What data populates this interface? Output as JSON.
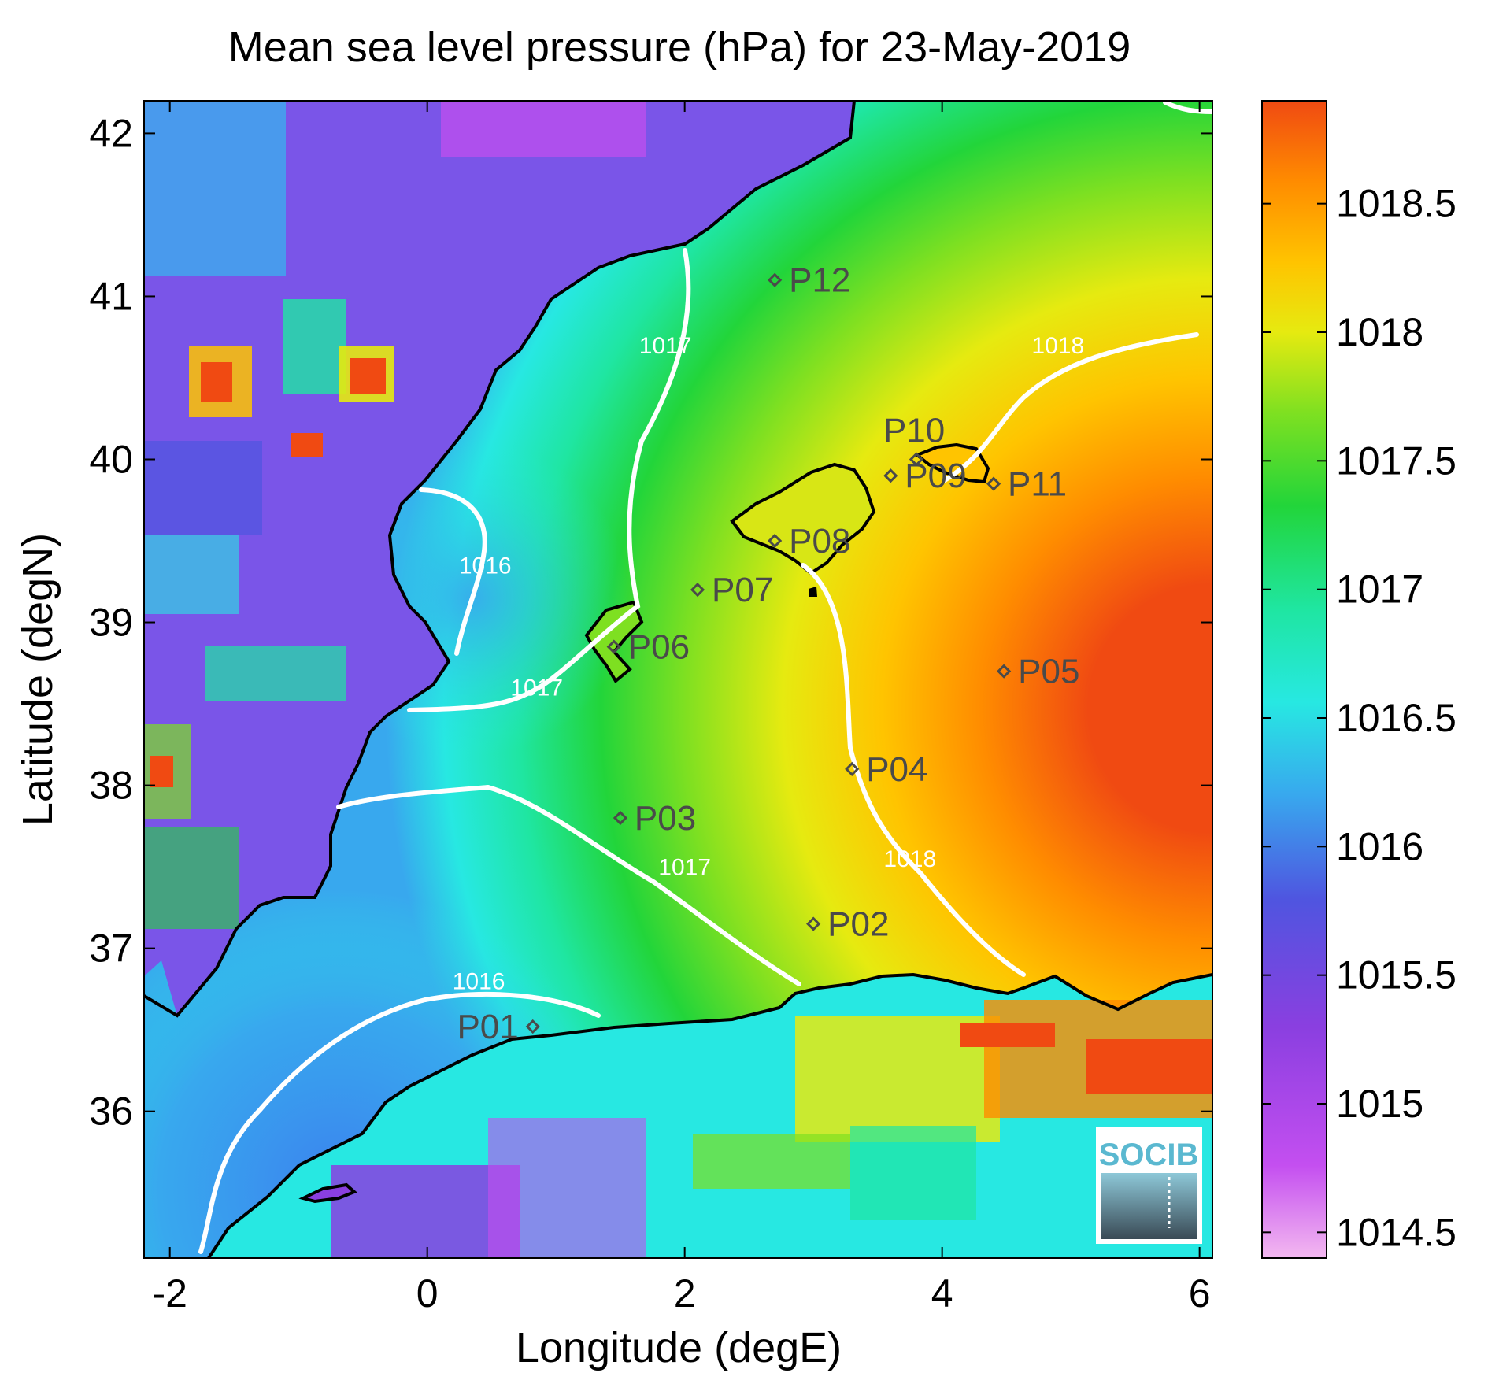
{
  "title": "Mean sea level pressure (hPa) for 23-May-2019",
  "xlabel": "Longitude (degE)",
  "ylabel": "Latitude (degN)",
  "logo_text": "SOCIB",
  "colors": {
    "contour": "#ffffff",
    "coastline": "#000000",
    "station": "#4a4a4a"
  },
  "chart_data": {
    "type": "heatmap",
    "title": "Mean sea level pressure (hPa) for 23-May-2019",
    "xlabel": "Longitude (degE)",
    "ylabel": "Latitude (degN)",
    "xlim": [
      -2.2,
      6.1
    ],
    "ylim": [
      35.1,
      42.2
    ],
    "x_ticks": [
      -2,
      0,
      2,
      4,
      6
    ],
    "y_ticks": [
      36,
      37,
      38,
      39,
      40,
      41,
      42
    ],
    "colorbar": {
      "range": [
        1014.4,
        1018.9
      ],
      "ticks": [
        1014.5,
        1015,
        1015.5,
        1016,
        1016.5,
        1017,
        1017.5,
        1018,
        1018.5
      ],
      "colormap": [
        "#f3b8f0",
        "#c44ff0",
        "#8a3fe0",
        "#4f55e0",
        "#38a8ee",
        "#27e8e2",
        "#1fe6a2",
        "#22d53a",
        "#7ee021",
        "#e6ea10",
        "#ffc400",
        "#ff8c00",
        "#f04a12"
      ]
    },
    "contour_levels": [
      1016,
      1017,
      1018
    ],
    "contour_labels": [
      {
        "text": "1016",
        "lon": 0.45,
        "lat": 39.3
      },
      {
        "text": "1017",
        "lon": 1.85,
        "lat": 40.65
      },
      {
        "text": "1017",
        "lon": 0.85,
        "lat": 38.55
      },
      {
        "text": "1017",
        "lon": 2.0,
        "lat": 37.45
      },
      {
        "text": "1018",
        "lon": 4.9,
        "lat": 40.65
      },
      {
        "text": "1018",
        "lon": 3.75,
        "lat": 37.5
      },
      {
        "text": "1016",
        "lon": 0.4,
        "lat": 36.75
      }
    ],
    "stations": [
      {
        "name": "P01",
        "lon": 0.82,
        "lat": 36.52
      },
      {
        "name": "P02",
        "lon": 3.0,
        "lat": 37.15
      },
      {
        "name": "P03",
        "lon": 1.5,
        "lat": 37.8
      },
      {
        "name": "P04",
        "lon": 3.3,
        "lat": 38.1
      },
      {
        "name": "P05",
        "lon": 4.48,
        "lat": 38.7
      },
      {
        "name": "P06",
        "lon": 1.45,
        "lat": 38.85
      },
      {
        "name": "P07",
        "lon": 2.1,
        "lat": 39.2
      },
      {
        "name": "P08",
        "lon": 2.7,
        "lat": 39.5
      },
      {
        "name": "P09",
        "lon": 3.6,
        "lat": 39.9
      },
      {
        "name": "P10",
        "lon": 3.8,
        "lat": 40.0
      },
      {
        "name": "P11",
        "lon": 4.4,
        "lat": 39.85
      },
      {
        "name": "P12",
        "lon": 2.7,
        "lat": 41.1
      }
    ]
  }
}
